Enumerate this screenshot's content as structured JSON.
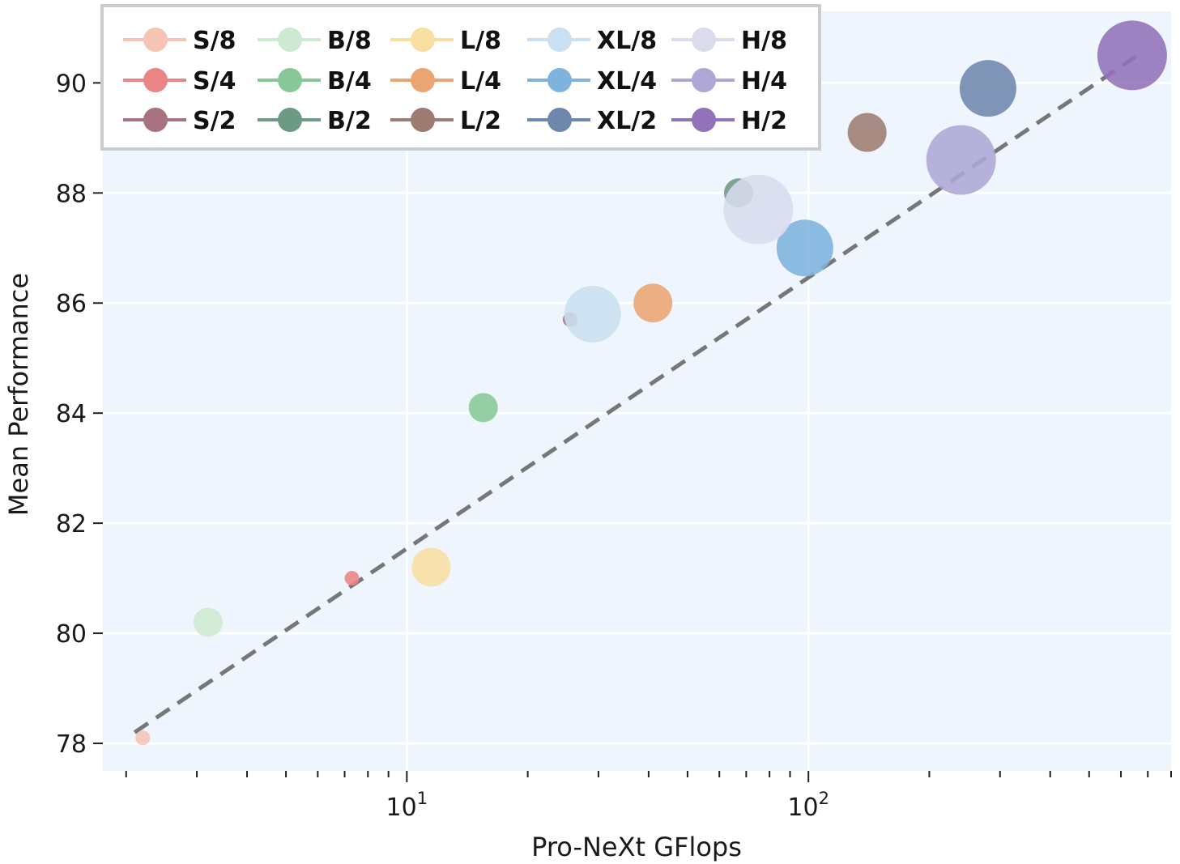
{
  "chart_data": {
    "type": "scatter",
    "title": "",
    "xlabel": "Pro-NeXt GFlops",
    "ylabel": "Mean Performance",
    "xscale": "log",
    "xlim": [
      1.75,
      800
    ],
    "ylim": [
      77.5,
      91.3
    ],
    "yticks": [
      78,
      80,
      82,
      84,
      86,
      88,
      90
    ],
    "xticks_major": [
      {
        "value": 10,
        "base": "10",
        "exp": "1"
      },
      {
        "value": 100,
        "base": "10",
        "exp": "2"
      }
    ],
    "grid": true,
    "background_color": "#eef5fd",
    "legend_position": "top-left",
    "legend_columns": 5,
    "trend_line": {
      "style": "dashed",
      "color": "#777777",
      "x": [
        2.1,
        660
      ],
      "y": [
        78.2,
        90.5
      ]
    },
    "series": [
      {
        "name": "S/8",
        "color": "#f6c4b4",
        "x": 2.2,
        "y": 78.1,
        "size": 1
      },
      {
        "name": "S/4",
        "color": "#ea8585",
        "x": 7.3,
        "y": 81.0,
        "size": 1
      },
      {
        "name": "S/2",
        "color": "#a8727f",
        "x": 25.5,
        "y": 85.7,
        "size": 1
      },
      {
        "name": "B/8",
        "color": "#cde9d2",
        "x": 3.2,
        "y": 80.2,
        "size": 2
      },
      {
        "name": "B/4",
        "color": "#87c896",
        "x": 15.5,
        "y": 84.1,
        "size": 2
      },
      {
        "name": "B/2",
        "color": "#6c9a82",
        "x": 67,
        "y": 88.0,
        "size": 2
      },
      {
        "name": "L/8",
        "color": "#f8dea0",
        "x": 11.5,
        "y": 81.2,
        "size": 3
      },
      {
        "name": "L/4",
        "color": "#eba572",
        "x": 41,
        "y": 86.0,
        "size": 3
      },
      {
        "name": "L/2",
        "color": "#9d7b70",
        "x": 140,
        "y": 89.1,
        "size": 3
      },
      {
        "name": "XL/8",
        "color": "#cadff0",
        "x": 29,
        "y": 85.8,
        "size": 4
      },
      {
        "name": "XL/4",
        "color": "#7eb3de",
        "x": 98,
        "y": 87.0,
        "size": 4
      },
      {
        "name": "XL/2",
        "color": "#6e88ad",
        "x": 280,
        "y": 89.9,
        "size": 4
      },
      {
        "name": "H/8",
        "color": "#d8dced",
        "x": 75,
        "y": 87.7,
        "size": 5
      },
      {
        "name": "H/4",
        "color": "#ada7d5",
        "x": 240,
        "y": 88.6,
        "size": 5
      },
      {
        "name": "H/2",
        "color": "#9272b9",
        "x": 640,
        "y": 90.5,
        "size": 5
      }
    ]
  }
}
